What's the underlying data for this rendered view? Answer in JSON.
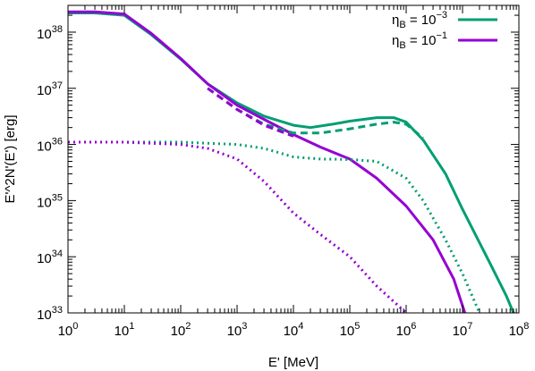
{
  "chart_data": {
    "type": "line",
    "xlabel": "E' [MeV]",
    "ylabel": "E'^2N'(E') [erg]",
    "xscale": "log",
    "yscale": "log",
    "xlim": [
      1,
      100000000
    ],
    "ylim": [
      1e+33,
      3e+38
    ],
    "grid": false,
    "legend_position": "top-right",
    "x_ticks": [
      {
        "value": 1,
        "base": "10",
        "exp": "0"
      },
      {
        "value": 10,
        "base": "10",
        "exp": "1"
      },
      {
        "value": 100,
        "base": "10",
        "exp": "2"
      },
      {
        "value": 1000,
        "base": "10",
        "exp": "3"
      },
      {
        "value": 10000,
        "base": "10",
        "exp": "4"
      },
      {
        "value": 100000,
        "base": "10",
        "exp": "5"
      },
      {
        "value": 1000000,
        "base": "10",
        "exp": "6"
      },
      {
        "value": 10000000,
        "base": "10",
        "exp": "7"
      },
      {
        "value": 100000000,
        "base": "10",
        "exp": "8"
      }
    ],
    "y_ticks": [
      {
        "value": 1e+33,
        "base": "10",
        "exp": "33"
      },
      {
        "value": 1e+34,
        "base": "10",
        "exp": "34"
      },
      {
        "value": 1e+35,
        "base": "10",
        "exp": "35"
      },
      {
        "value": 1e+36,
        "base": "10",
        "exp": "36"
      },
      {
        "value": 1e+37,
        "base": "10",
        "exp": "37"
      },
      {
        "value": 1e+38,
        "base": "10",
        "exp": "38"
      }
    ],
    "legend": [
      {
        "symbol": "η",
        "sub": "B",
        "eq": " = 10",
        "exp": "−3",
        "color": "#009e73"
      },
      {
        "symbol": "η",
        "sub": "B",
        "eq": " = 10",
        "exp": "−1",
        "color": "#9400d3"
      }
    ],
    "series": [
      {
        "name": "ηB = 10−3 total",
        "color": "#009e73",
        "style": "solid",
        "x": [
          1,
          3,
          10,
          30,
          100,
          300,
          1000,
          3000,
          10000,
          20000,
          50000,
          100000,
          300000,
          600000,
          1000000,
          2000000,
          5000000,
          10000000,
          30000000,
          60000000,
          80000000
        ],
        "y": [
          2.2e+38,
          2.2e+38,
          2e+38,
          9e+37,
          3.3e+37,
          1.2e+37,
          5.5e+36,
          3.2e+36,
          2.2e+36,
          2e+36,
          2.3e+36,
          2.6e+36,
          3e+36,
          3e+36,
          2.5e+36,
          1.2e+36,
          3e+35,
          7e+34,
          8e+33,
          2e+33,
          1e+33
        ]
      },
      {
        "name": "ηB = 10−1 total",
        "color": "#9400d3",
        "style": "solid",
        "x": [
          1,
          3,
          10,
          30,
          100,
          300,
          1000,
          3000,
          10000,
          30000,
          100000,
          300000,
          1000000,
          3000000,
          7000000,
          11000000
        ],
        "y": [
          2.3e+38,
          2.3e+38,
          2.1e+38,
          9.5e+37,
          3.4e+37,
          1.2e+37,
          5e+36,
          2.8e+36,
          1.5e+36,
          9e+35,
          5.5e+35,
          2.5e+35,
          8e+34,
          2e+34,
          4e+33,
          1e+33
        ]
      },
      {
        "name": "ηB = 10−3 dashed",
        "color": "#009e73",
        "style": "dashed",
        "x": [
          300,
          1000,
          3000,
          10000,
          30000,
          100000,
          300000,
          600000,
          1000000,
          2000000
        ],
        "y": [
          1e+37,
          4.2e+36,
          2.3e+36,
          1.6e+36,
          1.6e+36,
          1.9e+36,
          2.3e+36,
          2.5e+36,
          2.3e+36,
          1.3e+36
        ]
      },
      {
        "name": "ηB = 10−1 dashed",
        "color": "#9400d3",
        "style": "dashed",
        "x": [
          300,
          1000,
          3000,
          10000
        ],
        "y": [
          1e+37,
          4.2e+36,
          2.2e+36,
          1.4e+36
        ]
      },
      {
        "name": "ηB = 10−3 dotted",
        "color": "#009e73",
        "style": "dotted",
        "x": [
          1,
          10,
          100,
          1000,
          3000,
          10000,
          30000,
          100000,
          300000,
          1000000,
          2000000,
          5000000,
          10000000,
          20000000
        ],
        "y": [
          1.1e+36,
          1.1e+36,
          1.1e+36,
          1e+36,
          8.5e+35,
          6e+35,
          5.5e+35,
          5.4e+35,
          5e+35,
          2.5e+35,
          1e+35,
          2e+34,
          5e+33,
          1e+33
        ]
      },
      {
        "name": "ηB = 10−1 dotted",
        "color": "#9400d3",
        "style": "dotted",
        "x": [
          1,
          10,
          100,
          300,
          1000,
          3000,
          10000,
          30000,
          100000,
          300000,
          1000000
        ],
        "y": [
          1.1e+36,
          1.1e+36,
          1e+36,
          8.5e+35,
          5.5e+35,
          2.2e+35,
          6e+34,
          2.5e+34,
          1e+34,
          3e+33,
          1e+33
        ]
      }
    ]
  }
}
